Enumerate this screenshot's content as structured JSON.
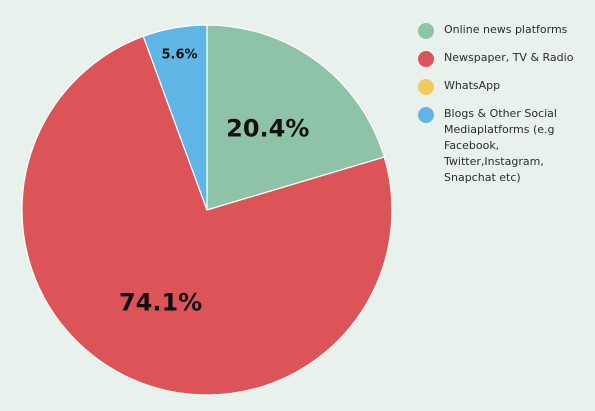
{
  "chart_data": {
    "type": "pie",
    "title": "",
    "start_angle_deg": 0,
    "direction": "clockwise",
    "series": [
      {
        "name": "Online news platforms",
        "value": 20.4,
        "label": "20.4%",
        "color": "#8fc3a8"
      },
      {
        "name": "Newspaper, TV & Radio",
        "value": 74.1,
        "label": "74.1%",
        "color": "#dc5458"
      },
      {
        "name": "WhatsApp",
        "value": 0,
        "label": "",
        "color": "#f0cc5e"
      },
      {
        "name": "Blogs & Other Social Mediaplatforms (e.g Facebook, Twitter,Instagram, Snapchat etc)",
        "value": 5.6,
        "label": "5.6%",
        "color": "#5fb6e6"
      }
    ],
    "legend_position": "right"
  }
}
